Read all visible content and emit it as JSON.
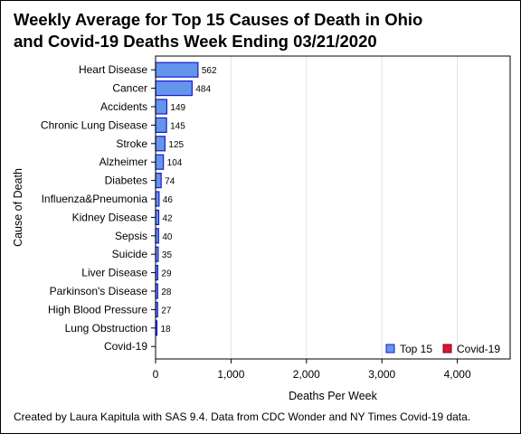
{
  "title": {
    "line1": "Weekly Average for Top 15 Causes of Death in Ohio",
    "line2": "and Covid-19 Deaths Week Ending 03/21/2020"
  },
  "footnote": "Created by Laura Kapitula with SAS 9.4. Data from CDC Wonder and NY Times Covid-19 data.",
  "chart_data": {
    "type": "bar",
    "orientation": "horizontal",
    "xlabel": "Deaths Per Week",
    "ylabel": "Cause of Death",
    "xlim": [
      0,
      4700
    ],
    "xticks": [
      0,
      1000,
      2000,
      3000,
      4000
    ],
    "xtick_labels": [
      "0",
      "1,000",
      "2,000",
      "3,000",
      "4,000"
    ],
    "grid": "vertical",
    "legend_placement": "bottom-right",
    "categories": [
      "Heart Disease",
      "Cancer",
      "Accidents",
      "Chronic Lung Disease",
      "Stroke",
      "Alzheimer",
      "Diabetes",
      "Influenza&Pneumonia",
      "Kidney Disease",
      "Sepsis",
      "Suicide",
      "Liver Disease",
      "Parkinson's Disease",
      "High Blood Pressure",
      "Lung Obstruction",
      "Covid-19"
    ],
    "series": [
      {
        "name": "Top 15",
        "color": "#6495ed",
        "edge_color": "#1a1acd",
        "values": [
          562,
          484,
          149,
          145,
          125,
          104,
          74,
          46,
          42,
          40,
          35,
          29,
          28,
          27,
          18,
          null
        ],
        "value_labels": [
          "562",
          "484",
          "149",
          "145",
          "125",
          "104",
          "74",
          "46",
          "42",
          "40",
          "35",
          "29",
          "28",
          "27",
          "18",
          ""
        ]
      },
      {
        "name": "Covid-19",
        "color": "#dc143c",
        "edge_color": "#8b0000",
        "values": [
          null,
          null,
          null,
          null,
          null,
          null,
          null,
          null,
          null,
          null,
          null,
          null,
          null,
          null,
          null,
          0
        ],
        "value_labels": [
          "",
          "",
          "",
          "",
          "",
          "",
          "",
          "",
          "",
          "",
          "",
          "",
          "",
          "",
          "",
          ""
        ]
      }
    ]
  }
}
